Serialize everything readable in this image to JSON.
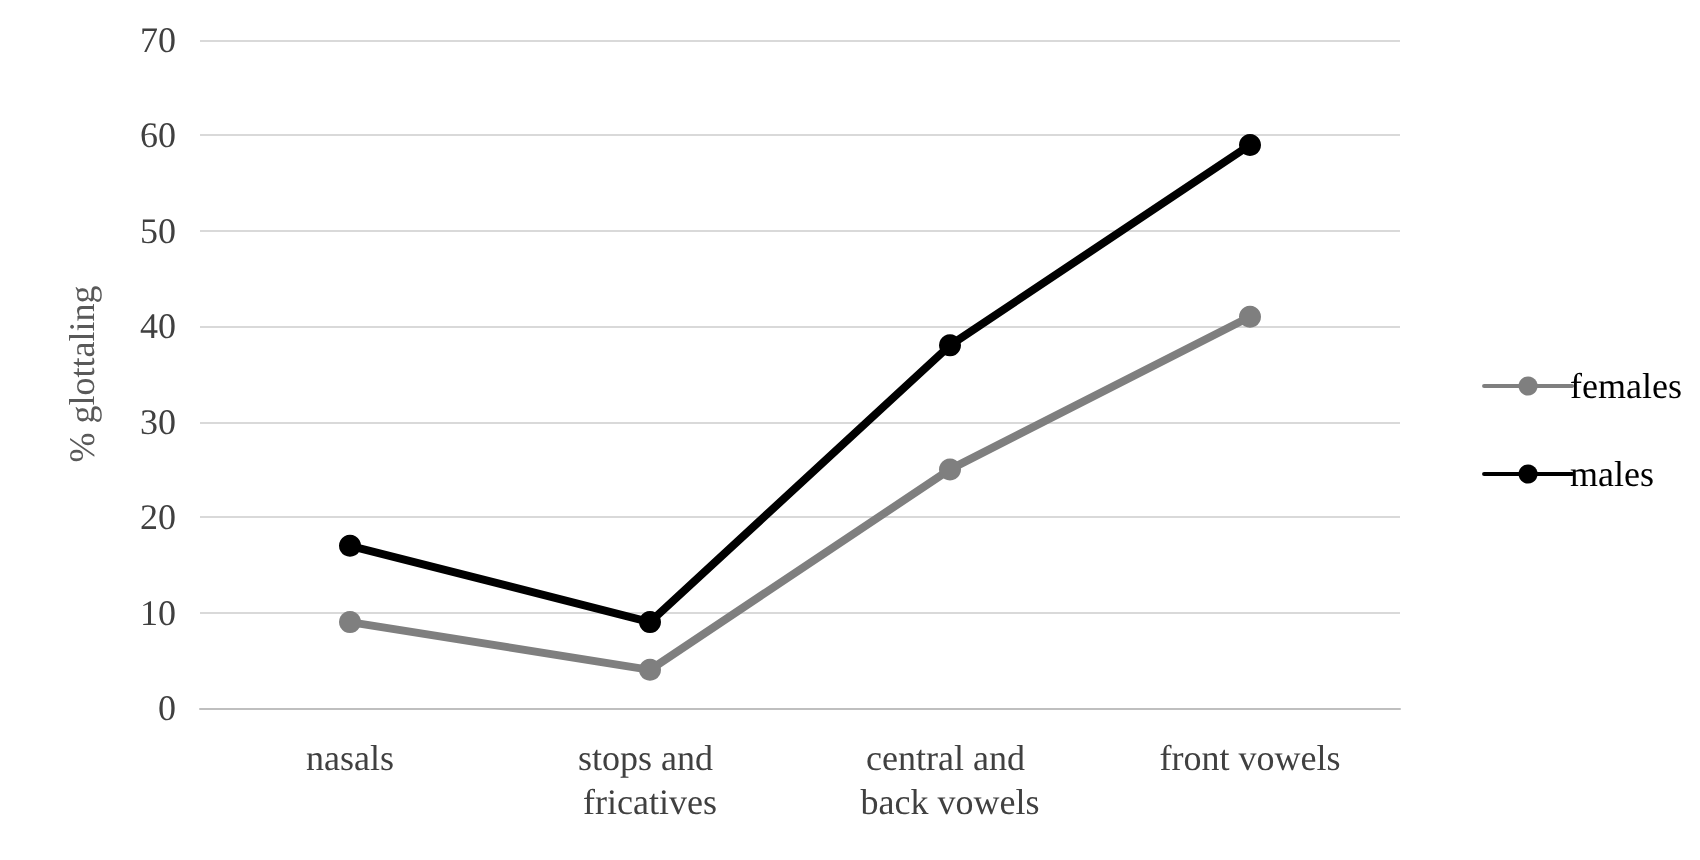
{
  "chart_data": {
    "type": "line",
    "categories": [
      "nasals",
      "stops and fricatives",
      "central and back vowels",
      "front vowels"
    ],
    "series": [
      {
        "name": "females",
        "color": "#7f7f7f",
        "values": [
          9,
          4,
          25,
          41
        ]
      },
      {
        "name": "males",
        "color": "#000000",
        "values": [
          17,
          9,
          38,
          59
        ]
      }
    ],
    "ylabel": "% glottaling",
    "ylim": [
      0,
      70
    ],
    "yticks": [
      0,
      10,
      20,
      30,
      40,
      50,
      60,
      70
    ],
    "grid": "y",
    "legend": "right",
    "marker": "circle",
    "line_style": "solid"
  }
}
